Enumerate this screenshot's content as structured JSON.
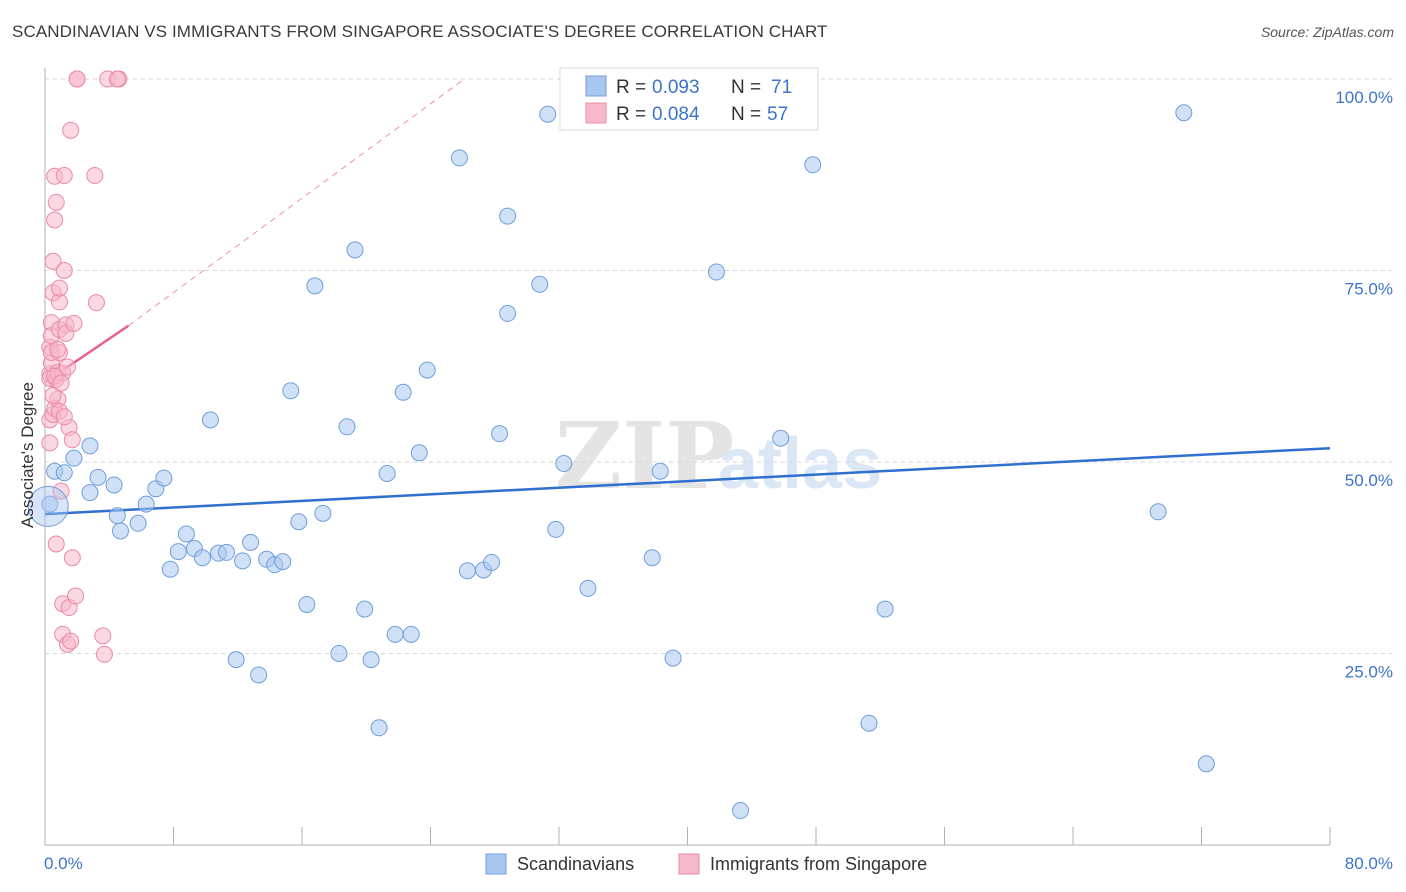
{
  "title": "SCANDINAVIAN VS IMMIGRANTS FROM SINGAPORE ASSOCIATE'S DEGREE CORRELATION CHART",
  "source": "Source: ZipAtlas.com",
  "watermark": {
    "zip": "ZIP",
    "atlas": "atlas"
  },
  "legend": {
    "r_label": "R =",
    "n_label": "N =",
    "rows": [
      {
        "name": "Scandinavians",
        "r": "0.093",
        "n": "71",
        "color": "#a9c6ef"
      },
      {
        "name": "Immigrants from Singapore",
        "r": "0.084",
        "n": "57",
        "color": "#f7b8ca"
      }
    ]
  },
  "colors": {
    "blue_fill": "#a9c6ef",
    "blue_stroke": "#6f9fdc",
    "blue_line": "#2f6fd0",
    "pink_fill": "#f7b8ca",
    "pink_stroke": "#e98aa6",
    "pink_line": "#e8618c",
    "grid": "#d5d5d5",
    "axis": "#b0b0b0"
  },
  "chart_data": {
    "type": "scatter",
    "title": "SCANDINAVIAN VS IMMIGRANTS FROM SINGAPORE ASSOCIATE'S DEGREE CORRELATION CHART",
    "xlabel": "",
    "ylabel": "Associate's Degree",
    "xlim": [
      0,
      80
    ],
    "ylim": [
      0,
      100
    ],
    "x_tick_labels": [
      "0.0%",
      "80.0%"
    ],
    "y_ticks": [
      25,
      50,
      75,
      100
    ],
    "y_tick_labels": [
      "25.0%",
      "50.0%",
      "75.0%",
      "100.0%"
    ],
    "series": [
      {
        "name": "Scandinavians",
        "trend": {
          "x": [
            0,
            80
          ],
          "y": [
            43.2,
            51.8
          ]
        },
        "points": [
          [
            0.3,
            44.5
          ],
          [
            0.6,
            48.8
          ],
          [
            1.2,
            48.6
          ],
          [
            1.8,
            50.5
          ],
          [
            2.8,
            46
          ],
          [
            3.3,
            48
          ],
          [
            4.3,
            47
          ],
          [
            2.8,
            52.1
          ],
          [
            4.5,
            43
          ],
          [
            4.7,
            41
          ],
          [
            5.8,
            42
          ],
          [
            6.3,
            44.5
          ],
          [
            6.9,
            46.5
          ],
          [
            7.4,
            47.9
          ],
          [
            7.8,
            36
          ],
          [
            8.3,
            38.3
          ],
          [
            8.8,
            40.6
          ],
          [
            9.3,
            38.7
          ],
          [
            9.8,
            37.5
          ],
          [
            10.3,
            55.5
          ],
          [
            10.8,
            38.1
          ],
          [
            11.3,
            38.2
          ],
          [
            11.9,
            24.2
          ],
          [
            12.3,
            37.1
          ],
          [
            12.8,
            39.5
          ],
          [
            13.3,
            22.2
          ],
          [
            13.8,
            37.3
          ],
          [
            14.3,
            36.6
          ],
          [
            14.8,
            37
          ],
          [
            15.3,
            59.3
          ],
          [
            15.8,
            42.2
          ],
          [
            16.3,
            31.4
          ],
          [
            16.8,
            73
          ],
          [
            17.3,
            43.3
          ],
          [
            18.3,
            25
          ],
          [
            18.8,
            54.6
          ],
          [
            19.3,
            77.7
          ],
          [
            19.9,
            30.8
          ],
          [
            20.3,
            24.2
          ],
          [
            20.8,
            15.3
          ],
          [
            21.3,
            48.5
          ],
          [
            21.8,
            27.5
          ],
          [
            22.3,
            59.1
          ],
          [
            22.8,
            27.5
          ],
          [
            23.3,
            51.2
          ],
          [
            23.8,
            62
          ],
          [
            25.8,
            89.7
          ],
          [
            26.3,
            35.8
          ],
          [
            27.3,
            35.9
          ],
          [
            27.8,
            36.9
          ],
          [
            28.3,
            53.7
          ],
          [
            28.8,
            69.4
          ],
          [
            28.8,
            82.1
          ],
          [
            30.8,
            73.2
          ],
          [
            31.3,
            95.4
          ],
          [
            31.8,
            41.2
          ],
          [
            32.3,
            49.8
          ],
          [
            33.8,
            33.5
          ],
          [
            37.8,
            37.5
          ],
          [
            38.3,
            48.8
          ],
          [
            39.1,
            24.4
          ],
          [
            41.8,
            74.8
          ],
          [
            43.3,
            4.5
          ],
          [
            45.8,
            53.1
          ],
          [
            47.8,
            88.8
          ],
          [
            51.3,
            15.9
          ],
          [
            52.3,
            30.8
          ],
          [
            69.3,
            43.5
          ],
          [
            70.9,
            95.6
          ],
          [
            72.3,
            10.6
          ],
          [
            0.2,
            44.2
          ]
        ]
      },
      {
        "name": "Immigrants from Singapore",
        "trend": {
          "x": [
            0,
            5.2
          ],
          "y": [
            60.4,
            67.8
          ]
        },
        "trend_ext": {
          "x": [
            5.2,
            26.1
          ],
          "y": [
            67.8,
            100
          ]
        },
        "points": [
          [
            0.3,
            52.5
          ],
          [
            0.3,
            55.5
          ],
          [
            0.3,
            61.5
          ],
          [
            0.3,
            65
          ],
          [
            0.3,
            60.9
          ],
          [
            0.4,
            68.2
          ],
          [
            0.4,
            66.5
          ],
          [
            0.4,
            62.9
          ],
          [
            0.4,
            64.3
          ],
          [
            0.5,
            72.1
          ],
          [
            0.5,
            76.2
          ],
          [
            0.5,
            56.2
          ],
          [
            0.6,
            57
          ],
          [
            0.6,
            87.3
          ],
          [
            0.6,
            81.6
          ],
          [
            0.7,
            83.9
          ],
          [
            0.7,
            39.3
          ],
          [
            0.7,
            60.8
          ],
          [
            0.8,
            61.7
          ],
          [
            0.8,
            58.2
          ],
          [
            0.9,
            64.3
          ],
          [
            0.9,
            67.3
          ],
          [
            0.9,
            70.9
          ],
          [
            0.9,
            72.7
          ],
          [
            0.9,
            56.6
          ],
          [
            1.0,
            46.2
          ],
          [
            1.1,
            27.5
          ],
          [
            1.1,
            31.5
          ],
          [
            1.1,
            61.6
          ],
          [
            1.2,
            87.4
          ],
          [
            1.2,
            75
          ],
          [
            1.3,
            67.9
          ],
          [
            1.3,
            66.8
          ],
          [
            1.4,
            26.2
          ],
          [
            1.5,
            31
          ],
          [
            1.5,
            54.5
          ],
          [
            1.6,
            93.3
          ],
          [
            1.6,
            26.6
          ],
          [
            1.7,
            52.9
          ],
          [
            1.7,
            37.5
          ],
          [
            1.8,
            68.1
          ],
          [
            1.9,
            32.5
          ],
          [
            2.0,
            100
          ],
          [
            2.0,
            100
          ],
          [
            3.1,
            87.4
          ],
          [
            3.2,
            70.8
          ],
          [
            3.6,
            27.3
          ],
          [
            3.7,
            24.9
          ],
          [
            3.9,
            100
          ],
          [
            4.6,
            100
          ],
          [
            4.5,
            100
          ],
          [
            0.5,
            58.7
          ],
          [
            0.6,
            61.2
          ],
          [
            0.8,
            64.7
          ],
          [
            1.0,
            60.3
          ],
          [
            1.2,
            55.9
          ],
          [
            1.4,
            62.4
          ]
        ]
      }
    ]
  }
}
